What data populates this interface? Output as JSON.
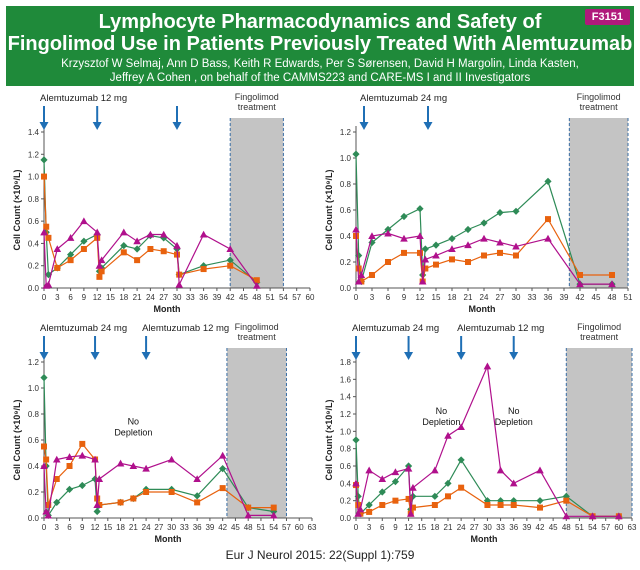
{
  "poster": {
    "id": "F3151",
    "title_line1": "Lymphocyte Pharmacodynamics and Safety of",
    "title_line2": "Fingolimod Use in Patients Previously Treated With Alemtuzumab",
    "authors_line1": "Krzysztof W Selmaj,   Ann D Bass,   Keith R Edwards,   Per S Sørensen,   David H Margolin,   Linda Kasten,",
    "authors_line2": "Jeffrey A Cohen  , on behalf of the CAMMS223 and CARE-MS I and II Investigators",
    "citation": "Eur J Neurol 2015: 22(Suppl 1):759"
  },
  "colors": {
    "green": "#2e8b57",
    "orange": "#e8620e",
    "magenta": "#b0108c",
    "arrow": "#1f6fb5",
    "shade": "#c4c4c4",
    "shade_border": "#3a6ea5"
  },
  "chart_data": [
    {
      "type": "line",
      "panel": "top-left",
      "xlabel": "Month",
      "ylabel": "Cell Count (×10⁹/L)",
      "xlim": [
        0,
        60
      ],
      "ylim": [
        0,
        1.4
      ],
      "xticks": [
        0,
        3,
        6,
        9,
        12,
        15,
        18,
        21,
        24,
        27,
        30,
        33,
        36,
        39,
        42,
        45,
        48,
        51,
        54,
        57,
        60
      ],
      "yticks": [
        0.0,
        0.2,
        0.4,
        0.6,
        0.8,
        1.0,
        1.2,
        1.4
      ],
      "shade": {
        "from": 42,
        "to": 54,
        "label": "Fingolimod treatment"
      },
      "arrows": [
        {
          "x": 0,
          "label": "Alemtuzumab 12 mg"
        },
        {
          "x": 12,
          "label": ""
        },
        {
          "x": 30,
          "label": ""
        }
      ],
      "notes": [],
      "series": [
        {
          "name": "green",
          "x": [
            0,
            0.5,
            1,
            3,
            6,
            9,
            12,
            12.5,
            13,
            18,
            21,
            24,
            27,
            30,
            30.5,
            36,
            42,
            48
          ],
          "y": [
            1.15,
            0.5,
            0.12,
            0.18,
            0.3,
            0.42,
            0.48,
            0.15,
            0.18,
            0.38,
            0.35,
            0.47,
            0.45,
            0.35,
            0.12,
            0.2,
            0.25,
            0.05
          ]
        },
        {
          "name": "orange",
          "x": [
            0,
            0.5,
            1,
            3,
            6,
            9,
            12,
            12.5,
            13,
            18,
            21,
            24,
            27,
            30,
            30.5,
            36,
            42,
            48
          ],
          "y": [
            1.0,
            0.55,
            0.45,
            0.18,
            0.25,
            0.35,
            0.45,
            0.1,
            0.15,
            0.32,
            0.25,
            0.35,
            0.33,
            0.3,
            0.12,
            0.17,
            0.2,
            0.07
          ]
        },
        {
          "name": "magenta",
          "x": [
            0,
            0.5,
            1,
            3,
            6,
            9,
            12,
            12.5,
            13,
            18,
            21,
            24,
            27,
            30,
            30.5,
            36,
            42,
            48
          ],
          "y": [
            0.5,
            0.02,
            0.03,
            0.35,
            0.45,
            0.6,
            0.5,
            0.2,
            0.25,
            0.5,
            0.42,
            0.48,
            0.48,
            0.38,
            0.03,
            0.48,
            0.35,
            0.02
          ]
        }
      ]
    },
    {
      "type": "line",
      "panel": "top-right",
      "xlabel": "Month",
      "ylabel": "Cell Count (×10⁹/L)",
      "xlim": [
        0,
        51
      ],
      "ylim": [
        0,
        1.2
      ],
      "xticks": [
        0,
        3,
        6,
        9,
        12,
        15,
        18,
        21,
        24,
        27,
        30,
        33,
        36,
        39,
        42,
        45,
        48,
        51
      ],
      "yticks": [
        0.0,
        0.2,
        0.4,
        0.6,
        0.8,
        1.0,
        1.2
      ],
      "shade": {
        "from": 40,
        "to": 51,
        "label": "Fingolimod treatment"
      },
      "arrows": [
        {
          "x": 1.5,
          "label": "Alemtuzumab 24 mg"
        },
        {
          "x": 13.5,
          "label": ""
        }
      ],
      "notes": [],
      "series": [
        {
          "name": "green",
          "x": [
            0,
            0.5,
            1,
            3,
            6,
            9,
            12,
            12.5,
            13,
            15,
            18,
            21,
            24,
            27,
            30,
            36,
            42,
            48
          ],
          "y": [
            1.03,
            0.25,
            0.05,
            0.35,
            0.45,
            0.55,
            0.61,
            0.1,
            0.3,
            0.33,
            0.38,
            0.45,
            0.5,
            0.58,
            0.59,
            0.82,
            0.03,
            0.03
          ]
        },
        {
          "name": "orange",
          "x": [
            0,
            0.5,
            1,
            3,
            6,
            9,
            12,
            12.5,
            13,
            15,
            18,
            21,
            24,
            27,
            30,
            36,
            42,
            48
          ],
          "y": [
            0.4,
            0.15,
            0.05,
            0.1,
            0.2,
            0.27,
            0.27,
            0.05,
            0.15,
            0.18,
            0.22,
            0.2,
            0.25,
            0.27,
            0.25,
            0.53,
            0.1,
            0.1
          ]
        },
        {
          "name": "magenta",
          "x": [
            0,
            0.5,
            1,
            3,
            6,
            9,
            12,
            12.5,
            13,
            15,
            18,
            21,
            24,
            27,
            30,
            36,
            42,
            48
          ],
          "y": [
            0.45,
            0.05,
            0.1,
            0.4,
            0.42,
            0.38,
            0.4,
            0.05,
            0.22,
            0.25,
            0.3,
            0.33,
            0.38,
            0.35,
            0.32,
            0.38,
            0.03,
            0.03
          ]
        }
      ]
    },
    {
      "type": "line",
      "panel": "bottom-left",
      "xlabel": "Month",
      "ylabel": "Cell Count (×10⁹/L)",
      "xlim": [
        0,
        63
      ],
      "ylim": [
        0,
        1.2
      ],
      "xticks": [
        0,
        3,
        6,
        9,
        12,
        15,
        18,
        21,
        24,
        27,
        30,
        33,
        36,
        39,
        42,
        45,
        48,
        51,
        54,
        57,
        60,
        63
      ],
      "yticks": [
        0.0,
        0.2,
        0.4,
        0.6,
        0.8,
        1.0,
        1.2
      ],
      "shade": {
        "from": 43,
        "to": 57,
        "label": "Fingolimod treatment"
      },
      "arrows": [
        {
          "x": 0,
          "label": "Alemtuzumab 24 mg"
        },
        {
          "x": 12,
          "label": ""
        },
        {
          "x": 24,
          "label": "Alemtuzumab 12 mg"
        }
      ],
      "notes": [
        {
          "x": 21,
          "y": 0.72,
          "text": "No Depletion"
        }
      ],
      "series": [
        {
          "name": "green",
          "x": [
            0,
            0.5,
            1,
            3,
            6,
            9,
            12,
            12.5,
            13,
            18,
            21,
            24,
            30,
            36,
            42,
            48,
            54
          ],
          "y": [
            1.08,
            0.4,
            0.02,
            0.12,
            0.22,
            0.25,
            0.3,
            0.05,
            0.1,
            0.12,
            0.15,
            0.22,
            0.22,
            0.17,
            0.38,
            0.08,
            0.05
          ]
        },
        {
          "name": "orange",
          "x": [
            0,
            0.5,
            1,
            3,
            6,
            9,
            12,
            12.5,
            13,
            18,
            21,
            24,
            30,
            36,
            42,
            48,
            54
          ],
          "y": [
            0.55,
            0.45,
            0.1,
            0.3,
            0.4,
            0.57,
            0.45,
            0.15,
            0.1,
            0.12,
            0.15,
            0.2,
            0.2,
            0.12,
            0.23,
            0.08,
            0.08
          ]
        },
        {
          "name": "magenta",
          "x": [
            0,
            0.5,
            1,
            3,
            6,
            9,
            12,
            12.5,
            13,
            18,
            21,
            24,
            30,
            36,
            42,
            48,
            54
          ],
          "y": [
            0.4,
            0.05,
            0.02,
            0.45,
            0.47,
            0.48,
            0.45,
            0.1,
            0.3,
            0.42,
            0.4,
            0.38,
            0.45,
            0.3,
            0.48,
            0.02,
            0.02
          ]
        }
      ]
    },
    {
      "type": "line",
      "panel": "bottom-right",
      "xlabel": "Month",
      "ylabel": "Cell Count (×10⁹/L)",
      "xlim": [
        0,
        63
      ],
      "ylim": [
        0,
        1.8
      ],
      "xticks": [
        0,
        3,
        6,
        9,
        12,
        15,
        18,
        21,
        24,
        27,
        30,
        33,
        36,
        39,
        42,
        45,
        48,
        51,
        54,
        57,
        60,
        63
      ],
      "yticks": [
        0.0,
        0.2,
        0.4,
        0.6,
        0.8,
        1.0,
        1.2,
        1.4,
        1.6,
        1.8
      ],
      "shade": {
        "from": 48,
        "to": 63,
        "label": "Fingolimod treatment"
      },
      "arrows": [
        {
          "x": 0,
          "label": "Alemtuzumab 24 mg"
        },
        {
          "x": 12,
          "label": ""
        },
        {
          "x": 24,
          "label": "Alemtuzumab 12 mg"
        },
        {
          "x": 36,
          "label": ""
        }
      ],
      "notes": [
        {
          "x": 19.5,
          "y": 1.2,
          "text": "No Depletion"
        },
        {
          "x": 36,
          "y": 1.2,
          "text": "No Depletion"
        }
      ],
      "series": [
        {
          "name": "green",
          "x": [
            0,
            0.5,
            1,
            3,
            6,
            9,
            12,
            12.5,
            13,
            18,
            21,
            24,
            30,
            33,
            36,
            42,
            48,
            54,
            60
          ],
          "y": [
            0.9,
            0.25,
            0.05,
            0.15,
            0.3,
            0.42,
            0.6,
            0.1,
            0.25,
            0.25,
            0.4,
            0.67,
            0.2,
            0.2,
            0.2,
            0.2,
            0.25,
            0.02,
            0.02
          ]
        },
        {
          "name": "orange",
          "x": [
            0,
            0.5,
            1,
            3,
            6,
            9,
            12,
            12.5,
            13,
            18,
            21,
            24,
            30,
            33,
            36,
            42,
            48,
            54,
            60
          ],
          "y": [
            0.38,
            0.15,
            0.05,
            0.07,
            0.15,
            0.2,
            0.22,
            0.05,
            0.12,
            0.15,
            0.25,
            0.35,
            0.15,
            0.15,
            0.15,
            0.12,
            0.2,
            0.02,
            0.02
          ]
        },
        {
          "name": "magenta",
          "x": [
            0,
            0.5,
            1,
            3,
            6,
            9,
            12,
            12.5,
            13,
            18,
            21,
            24,
            30,
            33,
            36,
            42,
            48,
            54,
            60
          ],
          "y": [
            0.4,
            0.05,
            0.1,
            0.55,
            0.45,
            0.53,
            0.57,
            0.05,
            0.35,
            0.55,
            0.95,
            1.05,
            1.75,
            0.55,
            0.4,
            0.55,
            0.02,
            0.02,
            0.02
          ]
        }
      ]
    }
  ]
}
